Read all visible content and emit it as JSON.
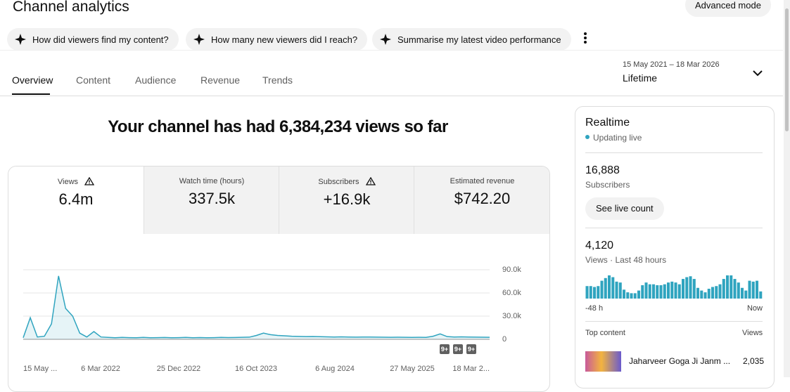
{
  "header": {
    "title": "Channel analytics",
    "advanced_mode": "Advanced mode"
  },
  "prompts": [
    "How did viewers find my content?",
    "How many new viewers did I reach?",
    "Summarise my latest video performance"
  ],
  "tabs": [
    "Overview",
    "Content",
    "Audience",
    "Revenue",
    "Trends"
  ],
  "date_range": {
    "range": "15 May 2021 – 18 Mar 2026",
    "label": "Lifetime"
  },
  "headline": "Your channel has had 6,384,234 views so far",
  "metrics": [
    {
      "label": "Views",
      "value": "6.4m"
    },
    {
      "label": "Watch time (hours)",
      "value": "337.5k"
    },
    {
      "label": "Subscribers",
      "value": "+16.9k"
    },
    {
      "label": "Estimated revenue",
      "value": "$742.20"
    }
  ],
  "chart_data": [
    {
      "type": "line",
      "color": "#2fa4bf",
      "values": [
        2000,
        28000,
        3000,
        4000,
        20000,
        82000,
        40000,
        30000,
        8000,
        3000,
        10000,
        3000,
        2500,
        2000,
        2500,
        2200,
        2000,
        2500,
        2000,
        2200,
        2400,
        2000,
        2200,
        2500,
        2000,
        2300,
        2000,
        2200,
        2500,
        2300,
        2400,
        2600,
        2800,
        5000,
        8000,
        6000,
        5000,
        4500,
        4000,
        3800,
        3500,
        3600,
        3400,
        3200,
        3000,
        3200,
        3000,
        2800,
        3000,
        2900,
        2800,
        2700,
        2600,
        2700,
        2600,
        2500,
        2600,
        2500,
        4000,
        7000,
        3500,
        3000,
        3200,
        3000,
        2800,
        2700,
        2600
      ],
      "x_labels": [
        "15 May ...",
        "6 Mar 2022",
        "25 Dec 2022",
        "16 Oct 2023",
        "6 Aug 2024",
        "27 May 2025",
        "18 Mar 2..."
      ],
      "ylim": [
        0,
        90000
      ],
      "yticks": [
        0,
        {
          "value": 30000,
          "label": "30.0k"
        },
        {
          "value": 60000,
          "label": "60.0k"
        },
        {
          "value": 90000,
          "label": "90.0k"
        }
      ],
      "grid": true,
      "annotations": [
        "9+",
        "9+",
        "9+"
      ]
    },
    {
      "type": "bar",
      "color": "#2fa4bf",
      "values": [
        70,
        70,
        65,
        70,
        100,
        115,
        130,
        120,
        95,
        90,
        50,
        35,
        30,
        30,
        45,
        75,
        90,
        80,
        80,
        75,
        75,
        80,
        90,
        95,
        90,
        80,
        110,
        120,
        125,
        110,
        60,
        45,
        35,
        55,
        65,
        70,
        80,
        110,
        130,
        130,
        110,
        90,
        60,
        45,
        100,
        95,
        100,
        40
      ],
      "x_labels": [
        "-48 h",
        "Now"
      ]
    }
  ],
  "realtime": {
    "title": "Realtime",
    "status": "Updating live",
    "subscribers_value": "16,888",
    "subscribers_label": "Subscribers",
    "button": "See live count",
    "views_value": "4,120",
    "views_label": "Views · Last 48 hours",
    "top_content": {
      "header": "Top content",
      "views_header": "Views",
      "items": [
        {
          "title": "Jaharveer Goga Ji Janm ...",
          "views": "2,035"
        }
      ]
    }
  }
}
